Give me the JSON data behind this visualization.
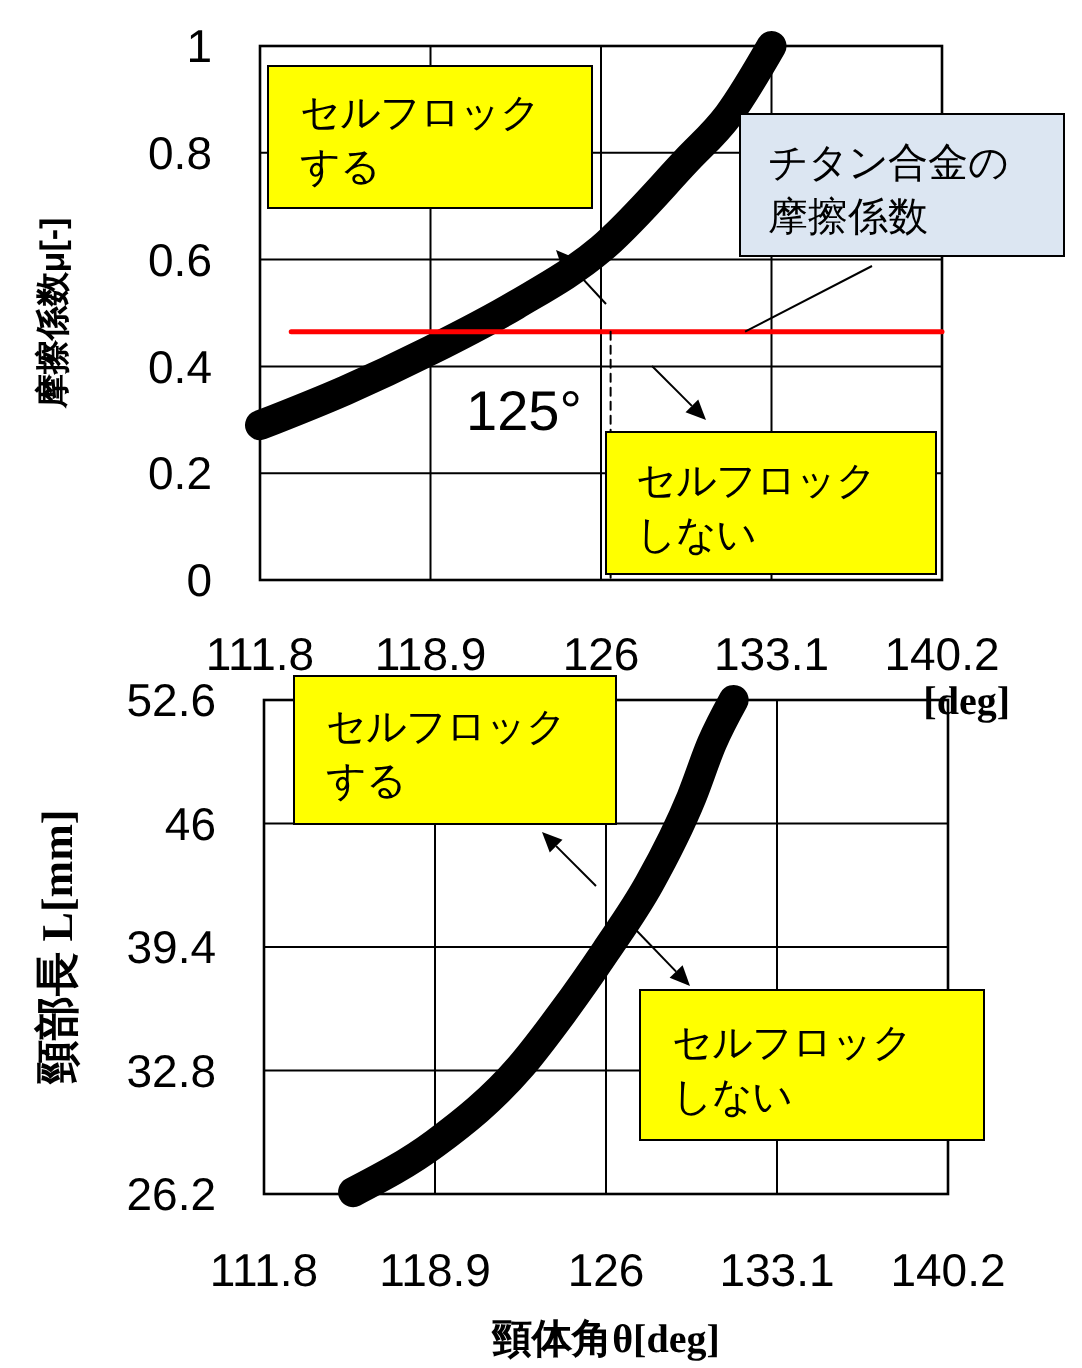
{
  "chart_data": [
    {
      "type": "line",
      "xlabel": "[deg]",
      "ylabel": "摩擦係数μ[-]",
      "xlim": [
        111.8,
        140.2
      ],
      "xticks": [
        111.8,
        118.9,
        126,
        133.1,
        140.2
      ],
      "ylim": [
        0,
        1
      ],
      "yticks": [
        0,
        0.2,
        0.4,
        0.6,
        0.8,
        1
      ],
      "grid": true,
      "marker": "none",
      "series": [
        {
          "color": "#000000",
          "x": [
            111.8,
            115.35,
            118.9,
            122.45,
            126,
            129.55,
            131.3,
            133.1
          ],
          "values": [
            0.29,
            0.355,
            0.43,
            0.515,
            0.62,
            0.785,
            0.87,
            1.0
          ]
        },
        {
          "color": "#ff0000",
          "x": [
            113.1,
            140.2
          ],
          "values": [
            0.465,
            0.465
          ]
        },
        {
          "color": "#000000",
          "line_style": "dashed",
          "x": [
            126.4,
            126.4
          ],
          "values": [
            0.465,
            0
          ]
        }
      ],
      "annotations": [
        "セルフロックする",
        {
          "text": "チタン合金の摩擦係数",
          "x": 132,
          "y": 0.465
        },
        "125°",
        "セルフロックしない"
      ]
    },
    {
      "type": "line",
      "xlabel": "頸体角θ[deg]",
      "ylabel": "頸部長 L[mm]",
      "xlim": [
        111.8,
        140.2
      ],
      "xticks": [
        111.8,
        118.9,
        126,
        133.1,
        140.2
      ],
      "ylim": [
        26.2,
        52.6
      ],
      "yticks": [
        26.2,
        32.8,
        39.4,
        46,
        52.6
      ],
      "grid": true,
      "marker": "none",
      "series": [
        {
          "color": "#000000",
          "x": [
            115.5,
            118.9,
            122.45,
            124.2,
            126,
            127.8,
            129.55,
            130.4,
            131.3
          ],
          "values": [
            26.3,
            28.9,
            33.0,
            35.9,
            39.2,
            42.8,
            47.4,
            50.3,
            52.6
          ]
        }
      ],
      "annotations": [
        "セルフロックする",
        "セルフロックしない"
      ]
    }
  ]
}
